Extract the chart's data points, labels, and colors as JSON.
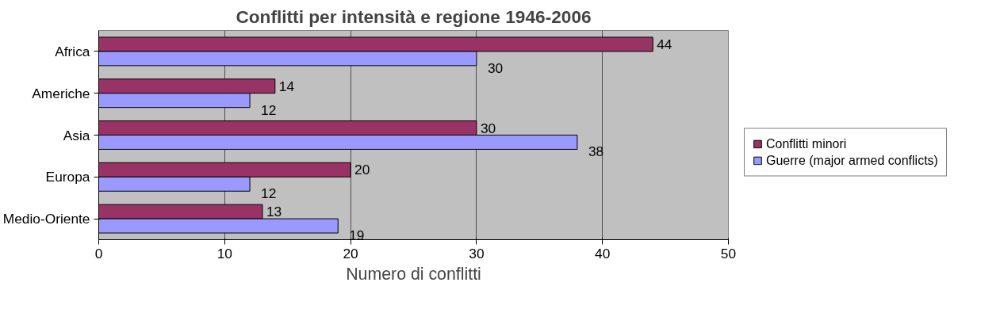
{
  "chart_data": {
    "type": "bar",
    "orientation": "horizontal",
    "title": "Conflitti per intensità e regione 1946-2006",
    "xlabel": "Numero di conflitti",
    "categories": [
      "Africa",
      "Americhe",
      "Asia",
      "Europa",
      "Medio-Oriente"
    ],
    "series": [
      {
        "name": "Conflitti minori",
        "color": "#993366",
        "values": [
          44,
          14,
          30,
          20,
          13
        ]
      },
      {
        "name": "Guerre (major armed conflicts)",
        "color": "#9999ff",
        "values": [
          30,
          12,
          38,
          12,
          19
        ]
      }
    ],
    "xlim": [
      0,
      50
    ],
    "xticks": [
      0,
      10,
      20,
      30,
      40,
      50
    ],
    "grid": "x",
    "legend": "right",
    "data_labels": true
  }
}
